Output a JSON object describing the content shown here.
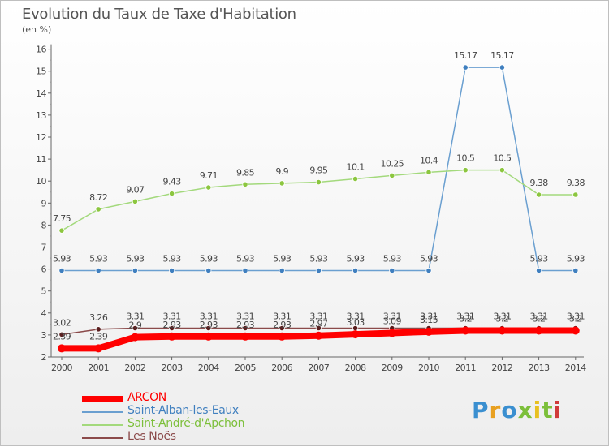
{
  "chart_data": {
    "type": "line",
    "title": "Evolution du Taux de Taxe d'Habitation",
    "subtitle": "(en %)",
    "x": [
      "2000",
      "2001",
      "2002",
      "2003",
      "2004",
      "2005",
      "2006",
      "2007",
      "2008",
      "2009",
      "2010",
      "2011",
      "2012",
      "2013",
      "2014"
    ],
    "ylim": [
      2,
      16
    ],
    "yticks": [
      2,
      3,
      4,
      5,
      6,
      7,
      8,
      9,
      10,
      11,
      12,
      13,
      14,
      15,
      16
    ],
    "grid": false,
    "legend_position": "bottom-left",
    "series": [
      {
        "name": "Saint-Alban-les-Eaux",
        "color": "#6a9fd0",
        "marker_color": "#3f7fbf",
        "values": [
          5.93,
          5.93,
          5.93,
          5.93,
          5.93,
          5.93,
          5.93,
          5.93,
          5.93,
          5.93,
          5.93,
          15.17,
          15.17,
          5.93,
          5.93
        ],
        "labels": [
          "5.93",
          "5.93",
          "5.93",
          "5.93",
          "5.93",
          "5.93",
          "5.93",
          "5.93",
          "5.93",
          "5.93",
          "5.93",
          "15.17",
          "15.17",
          "5.93",
          "5.93"
        ]
      },
      {
        "name": "Saint-André-d'Apchon",
        "color": "#a3d97c",
        "marker_color": "#8cc63f",
        "values": [
          7.75,
          8.72,
          9.07,
          9.43,
          9.71,
          9.85,
          9.9,
          9.95,
          10.1,
          10.25,
          10.4,
          10.5,
          10.5,
          9.38,
          9.38
        ],
        "labels": [
          "7.75",
          "8.72",
          "9.07",
          "9.43",
          "9.71",
          "9.85",
          "9.9",
          "9.95",
          "10.1",
          "10.25",
          "10.4",
          "10.5",
          "10.5",
          "9.38",
          "9.38"
        ]
      },
      {
        "name": "Les Noës",
        "color": "#8b4a4a",
        "marker_color": "#5a1e1e",
        "values": [
          3.02,
          3.26,
          3.31,
          3.31,
          3.31,
          3.31,
          3.31,
          3.31,
          3.31,
          3.31,
          3.31,
          3.31,
          3.31,
          3.31,
          3.31
        ],
        "labels": [
          "3.02",
          "3.26",
          "3.31",
          "3.31",
          "3.31",
          "3.31",
          "3.31",
          "3.31",
          "3.31",
          "3.31",
          "3.31",
          "3.31",
          "3.31",
          "3.31",
          "3.31"
        ]
      },
      {
        "name": "ARCON",
        "color": "#ff0000",
        "marker_color": "#ff0000",
        "values": [
          2.39,
          2.39,
          2.9,
          2.93,
          2.93,
          2.93,
          2.93,
          2.97,
          3.03,
          3.09,
          3.15,
          3.2,
          3.2,
          3.2,
          3.2
        ],
        "labels": [
          "2.39",
          "2.39",
          "2.9",
          "2.93",
          "2.93",
          "2.93",
          "2.93",
          "2.97",
          "3.03",
          "3.09",
          "3.15",
          "3.2",
          "3.2",
          "3.2",
          "3.2"
        ]
      }
    ],
    "legend": [
      "ARCON",
      "Saint-Alban-les-Eaux",
      "Saint-André-d'Apchon",
      "Les Noës"
    ]
  },
  "logo": {
    "letters": [
      "P",
      "r",
      "o",
      "x",
      "i",
      "t",
      "i"
    ],
    "colors": [
      "#3a8fd0",
      "#e8a020",
      "#3a8fd0",
      "#7cbf3a",
      "#e8c020",
      "#7cbf3a",
      "#d03a3a"
    ]
  }
}
